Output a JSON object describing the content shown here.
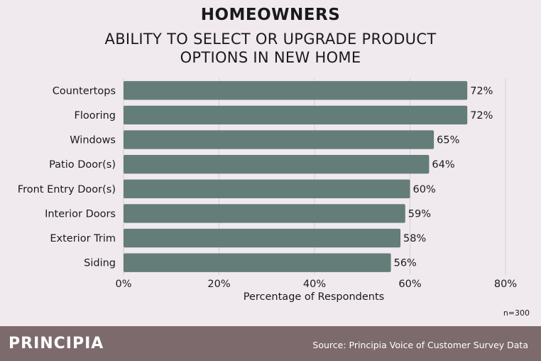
{
  "header": {
    "title": "HOMEOWNERS",
    "subtitle": "ABILITY TO SELECT OR UPGRADE PRODUCT OPTIONS IN NEW HOME"
  },
  "chart_data": {
    "type": "bar",
    "orientation": "horizontal",
    "categories": [
      "Countertops",
      "Flooring",
      "Windows",
      "Patio Door(s)",
      "Front Entry Door(s)",
      "Interior Doors",
      "Exterior Trim",
      "Siding"
    ],
    "values": [
      72,
      72,
      65,
      64,
      60,
      59,
      58,
      56
    ],
    "value_labels": [
      "72%",
      "72%",
      "65%",
      "64%",
      "60%",
      "59%",
      "58%",
      "56%"
    ],
    "xlabel": "Percentage of Respondents",
    "xlim": [
      0,
      80
    ],
    "x_ticks": [
      0,
      20,
      40,
      60,
      80
    ],
    "x_tick_labels": [
      "0%",
      "20%",
      "40%",
      "60%",
      "80%"
    ],
    "grid": true,
    "bar_color": "#647d78"
  },
  "note": "n=300",
  "footer": {
    "brand": "PRINCIPIA",
    "source": "Source: Principia Voice of Customer Survey Data"
  }
}
